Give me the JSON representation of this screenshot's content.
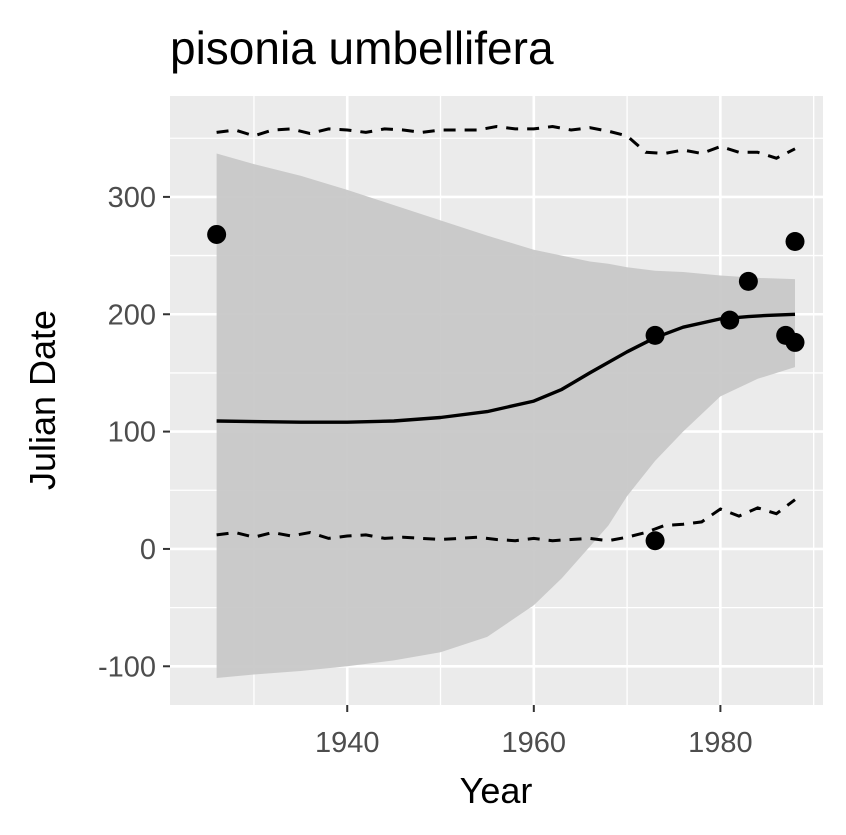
{
  "chart_data": {
    "type": "scatter",
    "title": "pisonia umbellifera",
    "xlabel": "Year",
    "ylabel": "Julian Date",
    "xlim": [
      1921,
      1991
    ],
    "ylim": [
      -133,
      386
    ],
    "x_ticks": [
      1940,
      1960,
      1980
    ],
    "x_tick_labels": [
      "1940",
      "1960",
      "1980"
    ],
    "y_ticks": [
      -100,
      0,
      100,
      200,
      300
    ],
    "y_tick_labels": [
      "-100",
      "0",
      "100",
      "200",
      "300"
    ],
    "grid": true,
    "legend": "none",
    "points": [
      {
        "x": 1926,
        "y": 268
      },
      {
        "x": 1973,
        "y": 182
      },
      {
        "x": 1973,
        "y": 7
      },
      {
        "x": 1981,
        "y": 195
      },
      {
        "x": 1983,
        "y": 228
      },
      {
        "x": 1987,
        "y": 182
      },
      {
        "x": 1988,
        "y": 262
      },
      {
        "x": 1988,
        "y": 176
      }
    ],
    "fit_line": {
      "x": [
        1926,
        1930,
        1935,
        1940,
        1945,
        1950,
        1955,
        1960,
        1963,
        1966,
        1970,
        1973,
        1976,
        1980,
        1983,
        1985,
        1988
      ],
      "y": [
        109,
        108.5,
        108,
        108,
        109,
        112,
        117,
        126,
        136,
        150,
        168,
        180,
        189,
        196,
        198,
        199,
        200
      ]
    },
    "confidence_band": {
      "x": [
        1926,
        1930,
        1935,
        1940,
        1945,
        1950,
        1955,
        1960,
        1963,
        1966,
        1968,
        1970,
        1973,
        1976,
        1980,
        1984,
        1988
      ],
      "upper": [
        337,
        328,
        318,
        306,
        293,
        280,
        267,
        255,
        250,
        245,
        243,
        240,
        237,
        236,
        233,
        231,
        230
      ],
      "lower": [
        -110,
        -107,
        -104,
        -100,
        -95,
        -88,
        -75,
        -48,
        -25,
        2,
        20,
        45,
        75,
        100,
        130,
        145,
        155
      ]
    },
    "upper_dashed": {
      "x": [
        1926,
        1928,
        1930,
        1932,
        1934,
        1936,
        1938,
        1940,
        1942,
        1944,
        1946,
        1948,
        1950,
        1952,
        1954,
        1956,
        1958,
        1960,
        1962,
        1964,
        1966,
        1968,
        1970,
        1972,
        1974,
        1976,
        1978,
        1980,
        1982,
        1984,
        1986,
        1988
      ],
      "y": [
        355,
        357,
        352,
        357,
        358,
        354,
        358,
        357,
        355,
        358,
        357,
        355,
        357,
        357,
        357,
        360,
        358,
        358,
        360,
        357,
        359,
        356,
        352,
        338,
        337,
        340,
        337,
        343,
        338,
        338,
        333,
        341
      ]
    },
    "lower_dashed": {
      "x": [
        1926,
        1928,
        1930,
        1932,
        1934,
        1936,
        1938,
        1940,
        1942,
        1944,
        1946,
        1948,
        1950,
        1952,
        1954,
        1956,
        1958,
        1960,
        1962,
        1964,
        1966,
        1968,
        1970,
        1972,
        1974,
        1976,
        1978,
        1980,
        1982,
        1984,
        1986,
        1988
      ],
      "y": [
        12,
        14,
        10,
        14,
        11,
        14,
        9,
        11,
        12,
        9,
        10,
        9,
        8,
        9,
        10,
        8,
        7,
        9,
        7,
        8,
        9,
        7,
        10,
        14,
        20,
        21,
        23,
        34,
        28,
        35,
        30,
        42
      ]
    }
  },
  "style": {
    "panel_bg": "#ebebeb",
    "grid_major": "#ffffff",
    "band_fill": "#c8c8c8",
    "ink": "#000000",
    "tick_text": "#4d4d4d",
    "tick_mark": "#333333"
  }
}
